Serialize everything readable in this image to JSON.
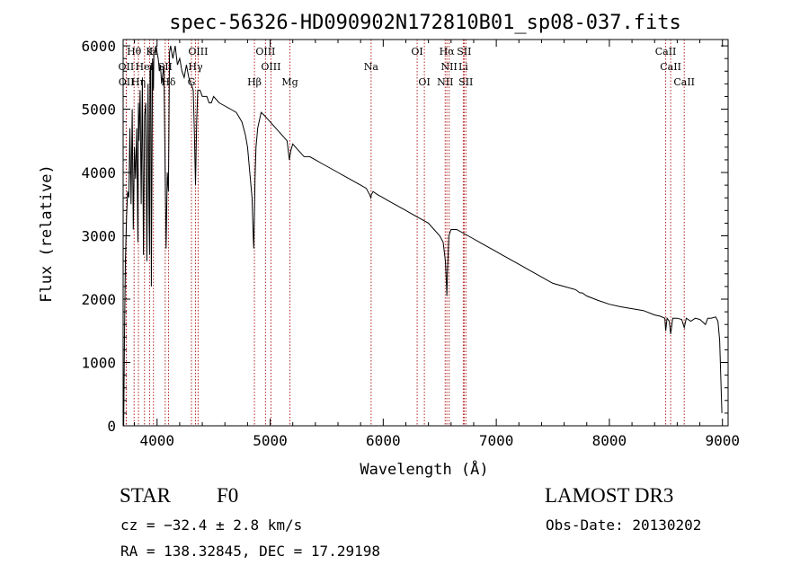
{
  "chart_data": {
    "type": "line",
    "title": "spec-56326-HD090902N172810B01_sp08-037.fits",
    "xlabel": "Wavelength (Å)",
    "ylabel": "Flux (relative)",
    "xlim": [
      3700,
      9050
    ],
    "ylim": [
      0,
      6100
    ],
    "xticks": [
      4000,
      5000,
      6000,
      7000,
      8000,
      9000
    ],
    "yticks": [
      0,
      1000,
      2000,
      3000,
      4000,
      5000,
      6000
    ],
    "grid": false,
    "series": [
      {
        "name": "flux",
        "x": [
          3705,
          3712,
          3720,
          3730,
          3740,
          3750,
          3760,
          3770,
          3780,
          3790,
          3800,
          3810,
          3820,
          3830,
          3835,
          3840,
          3850,
          3860,
          3870,
          3880,
          3890,
          3900,
          3910,
          3920,
          3930,
          3934,
          3938,
          3945,
          3950,
          3960,
          3968,
          3972,
          3980,
          3990,
          4000,
          4010,
          4020,
          4030,
          4040,
          4060,
          4080,
          4090,
          4101,
          4110,
          4120,
          4140,
          4160,
          4180,
          4200,
          4220,
          4240,
          4260,
          4280,
          4300,
          4320,
          4330,
          4340,
          4350,
          4360,
          4380,
          4400,
          4420,
          4440,
          4460,
          4480,
          4500,
          4550,
          4600,
          4650,
          4700,
          4750,
          4780,
          4800,
          4820,
          4840,
          4850,
          4855,
          4861,
          4866,
          4875,
          4890,
          4920,
          4950,
          5000,
          5050,
          5100,
          5150,
          5170,
          5183,
          5200,
          5250,
          5300,
          5350,
          5400,
          5450,
          5500,
          5550,
          5600,
          5650,
          5700,
          5750,
          5800,
          5850,
          5880,
          5890,
          5896,
          5910,
          5950,
          6000,
          6050,
          6100,
          6150,
          6200,
          6250,
          6300,
          6350,
          6400,
          6450,
          6500,
          6530,
          6550,
          6560,
          6563,
          6570,
          6580,
          6600,
          6650,
          6700,
          6750,
          6800,
          6850,
          6900,
          6950,
          7000,
          7050,
          7100,
          7200,
          7300,
          7400,
          7500,
          7600,
          7700,
          7740,
          7760,
          7800,
          7900,
          8000,
          8100,
          8200,
          8300,
          8400,
          8450,
          8490,
          8498,
          8510,
          8530,
          8542,
          8560,
          8600,
          8640,
          8662,
          8680,
          8720,
          8760,
          8800,
          8850,
          8870,
          8900,
          8940,
          8960,
          8975,
          8985,
          8995
        ],
        "y": [
          0,
          1400,
          2600,
          3300,
          3700,
          3600,
          4700,
          3500,
          5000,
          3100,
          4400,
          3900,
          4700,
          2900,
          5100,
          4500,
          5300,
          3500,
          5500,
          2700,
          4900,
          5100,
          2600,
          5400,
          3200,
          2700,
          5600,
          5700,
          2200,
          5800,
          5300,
          5900,
          5900,
          6000,
          5900,
          5800,
          5600,
          5700,
          5400,
          5700,
          2800,
          4000,
          3700,
          5900,
          6000,
          5800,
          6000,
          5700,
          5800,
          5600,
          5500,
          5700,
          5500,
          5400,
          5300,
          4600,
          3800,
          4800,
          5300,
          5300,
          5200,
          5200,
          5200,
          5100,
          5100,
          5200,
          5100,
          5050,
          5000,
          4950,
          4800,
          4600,
          4400,
          4000,
          3600,
          3000,
          2800,
          3300,
          3900,
          4400,
          4700,
          4950,
          4900,
          4800,
          4700,
          4600,
          4500,
          4200,
          4350,
          4450,
          4350,
          4250,
          4250,
          4200,
          4150,
          4100,
          4050,
          4000,
          3950,
          3900,
          3850,
          3800,
          3750,
          3650,
          3600,
          3650,
          3700,
          3650,
          3600,
          3550,
          3500,
          3450,
          3400,
          3350,
          3300,
          3250,
          3200,
          3100,
          3000,
          2900,
          2600,
          2200,
          2050,
          2500,
          3000,
          3100,
          3100,
          3050,
          3000,
          2950,
          2900,
          2850,
          2800,
          2750,
          2700,
          2650,
          2550,
          2450,
          2350,
          2250,
          2200,
          2150,
          2100,
          2100,
          2050,
          1980,
          1920,
          1880,
          1850,
          1820,
          1750,
          1730,
          1700,
          1500,
          1700,
          1650,
          1450,
          1700,
          1700,
          1680,
          1550,
          1700,
          1650,
          1700,
          1680,
          1600,
          1700,
          1700,
          1720,
          1650,
          1350,
          800,
          200
        ]
      }
    ],
    "lines": [
      {
        "label": "Hθ",
        "wl": 3797,
        "row": 1
      },
      {
        "label": "K",
        "wl": 3934,
        "row": 1
      },
      {
        "label": "H",
        "wl": 3968,
        "row": 1
      },
      {
        "label": "OIII",
        "wl": 4363,
        "row": 1
      },
      {
        "label": "OIII",
        "wl": 4959,
        "row": 1
      },
      {
        "label": "OI",
        "wl": 6300,
        "row": 1
      },
      {
        "label": "Hα",
        "wl": 6563,
        "row": 1
      },
      {
        "label": "SII",
        "wl": 6716,
        "row": 1
      },
      {
        "label": "CaII",
        "wl": 8498,
        "row": 1
      },
      {
        "label": "OII",
        "wl": 3727,
        "row": 2
      },
      {
        "label": "HeI",
        "wl": 3889,
        "row": 2
      },
      {
        "label": "SII",
        "wl": 4072,
        "row": 2
      },
      {
        "label": "Hγ",
        "wl": 4340,
        "row": 2
      },
      {
        "label": "OIII",
        "wl": 5007,
        "row": 2
      },
      {
        "label": "Na",
        "wl": 5893,
        "row": 2
      },
      {
        "label": "NII",
        "wl": 6583,
        "row": 2
      },
      {
        "label": "Li",
        "wl": 6708,
        "row": 2
      },
      {
        "label": "CaII",
        "wl": 8542,
        "row": 2
      },
      {
        "label": "OII",
        "wl": 3729,
        "row": 3
      },
      {
        "label": "Hη",
        "wl": 3835,
        "row": 3
      },
      {
        "label": "Hδ",
        "wl": 4101,
        "row": 3
      },
      {
        "label": "G",
        "wl": 4304,
        "row": 3
      },
      {
        "label": "Hβ",
        "wl": 4861,
        "row": 3
      },
      {
        "label": "Mg",
        "wl": 5175,
        "row": 3
      },
      {
        "label": "OI",
        "wl": 6364,
        "row": 3
      },
      {
        "label": "NII",
        "wl": 6548,
        "row": 3
      },
      {
        "label": "SII",
        "wl": 6731,
        "row": 3
      },
      {
        "label": "CaII",
        "wl": 8662,
        "row": 3
      }
    ]
  },
  "info": {
    "object_class": "STAR",
    "subclass": "F0",
    "survey": "LAMOST DR3",
    "cz": "cz = −32.4 ± 2.8 km/s",
    "obs_date": "Obs-Date: 20130202",
    "coords": "RA = 138.32845, DEC =  17.29198"
  }
}
